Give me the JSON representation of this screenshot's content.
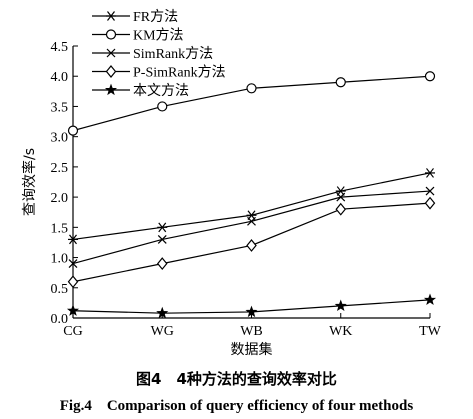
{
  "chart_data": {
    "type": "line",
    "categories": [
      "CG",
      "WG",
      "WB",
      "WK",
      "TW"
    ],
    "xlabel": "数据集",
    "ylabel": "查询效率/s",
    "ylim": [
      0,
      4.5
    ],
    "yticks": [
      0,
      0.5,
      1.0,
      1.5,
      2.0,
      2.5,
      3.0,
      3.5,
      4.0,
      4.5
    ],
    "ytick_labels": [
      "0.0",
      "0.5",
      "1.0",
      "1.5",
      "2.0",
      "2.5",
      "3.0",
      "3.5",
      "4.0",
      "4.5"
    ],
    "grid": false,
    "legend_position": "top-left",
    "series": [
      {
        "name": "FR方法",
        "marker": "asterisk",
        "values": [
          1.3,
          1.5,
          1.7,
          2.1,
          2.4
        ]
      },
      {
        "name": "KM方法",
        "marker": "circle",
        "values": [
          3.1,
          3.5,
          3.8,
          3.9,
          4.0
        ]
      },
      {
        "name": "SimRank方法",
        "marker": "x",
        "values": [
          0.9,
          1.3,
          1.6,
          2.0,
          2.1
        ]
      },
      {
        "name": "P-SimRank方法",
        "marker": "diamond",
        "values": [
          0.6,
          0.9,
          1.2,
          1.8,
          1.9
        ]
      },
      {
        "name": "本文方法",
        "marker": "star",
        "values": [
          0.12,
          0.08,
          0.1,
          0.2,
          0.3
        ]
      }
    ]
  },
  "caption": {
    "cn": "图4　4种方法的查询效率对比",
    "en": "Fig.4　Comparison of query efficiency of four methods"
  }
}
